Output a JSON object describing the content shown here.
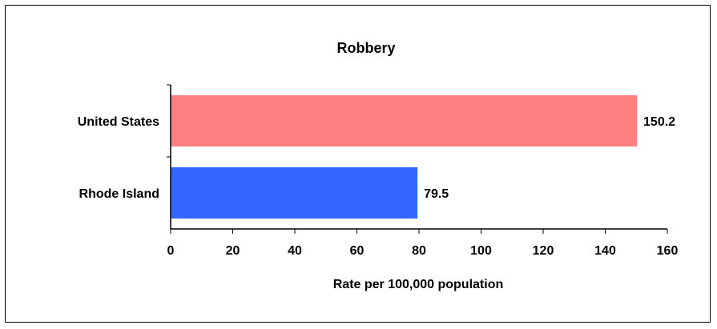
{
  "chart_data": {
    "type": "bar",
    "orientation": "horizontal",
    "title": "Robbery",
    "xlabel": "Rate per 100,000 population",
    "ylabel": "",
    "categories": [
      "United States",
      "Rhode Island"
    ],
    "values": [
      150.2,
      79.5
    ],
    "data_labels": [
      "150.2",
      "79.5"
    ],
    "colors": [
      "#ff8080",
      "#3366ff"
    ],
    "xlim": [
      0,
      160
    ],
    "xticks": [
      0,
      20,
      40,
      60,
      80,
      100,
      120,
      140,
      160
    ],
    "xtick_labels": [
      "0",
      "20",
      "40",
      "60",
      "80",
      "100",
      "120",
      "140",
      "160"
    ],
    "grid": false,
    "legend": "none"
  }
}
